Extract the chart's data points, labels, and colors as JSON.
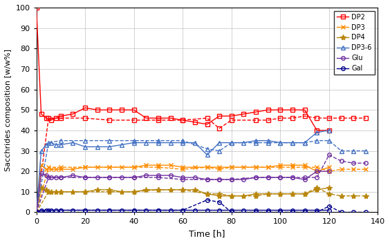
{
  "title": "",
  "xlabel": "Time [h]",
  "ylabel": "Sacchrides composition [w/w%]",
  "xlim": [
    0,
    140
  ],
  "ylim": [
    0,
    100
  ],
  "xticks": [
    0,
    20,
    40,
    60,
    80,
    100,
    120,
    140
  ],
  "yticks": [
    0,
    10,
    20,
    30,
    40,
    50,
    60,
    70,
    80,
    90,
    100
  ],
  "L1": {
    "DP2": {
      "x": [
        0,
        2,
        4,
        6,
        8,
        10,
        15,
        20,
        25,
        30,
        35,
        40,
        45,
        50,
        55,
        60,
        65,
        70,
        75,
        80,
        85,
        90,
        95,
        100,
        105,
        110,
        115,
        120
      ],
      "y": [
        100,
        48,
        46,
        45,
        46,
        47,
        48,
        51,
        50,
        50,
        50,
        50,
        46,
        46,
        46,
        45,
        44,
        43,
        47,
        47,
        48,
        49,
        50,
        50,
        50,
        50,
        40,
        40
      ],
      "color": "#FF0000",
      "marker": "s"
    },
    "DP3": {
      "x": [
        0,
        2,
        4,
        6,
        8,
        10,
        15,
        20,
        25,
        30,
        35,
        40,
        45,
        50,
        55,
        60,
        65,
        70,
        75,
        80,
        85,
        90,
        95,
        100,
        105,
        110,
        115,
        120
      ],
      "y": [
        0,
        23,
        21,
        21,
        21,
        21,
        21,
        22,
        22,
        22,
        22,
        22,
        23,
        23,
        23,
        22,
        22,
        22,
        22,
        22,
        22,
        22,
        22,
        23,
        23,
        23,
        20,
        22
      ],
      "color": "#FF8C00",
      "marker": "x"
    },
    "DP4": {
      "x": [
        0,
        2,
        4,
        6,
        8,
        10,
        15,
        20,
        25,
        30,
        35,
        40,
        45,
        50,
        55,
        60,
        65,
        70,
        75,
        80,
        85,
        90,
        95,
        100,
        105,
        110,
        115,
        120
      ],
      "y": [
        0,
        12,
        11,
        10,
        10,
        10,
        10,
        10,
        11,
        11,
        10,
        10,
        11,
        11,
        11,
        11,
        11,
        9,
        8,
        8,
        8,
        9,
        9,
        9,
        9,
        9,
        11,
        12
      ],
      "color": "#B8860B",
      "marker": "*"
    },
    "DP3-6": {
      "x": [
        0,
        2,
        4,
        6,
        8,
        10,
        15,
        20,
        25,
        30,
        35,
        40,
        45,
        50,
        55,
        60,
        65,
        70,
        75,
        80,
        85,
        90,
        95,
        100,
        105,
        110,
        115,
        120
      ],
      "y": [
        0,
        30,
        33,
        34,
        33,
        33,
        34,
        32,
        32,
        32,
        33,
        34,
        34,
        34,
        34,
        34,
        34,
        28,
        34,
        34,
        34,
        35,
        35,
        34,
        34,
        34,
        39,
        40
      ],
      "color": "#4472C4",
      "marker": "^"
    },
    "Glu": {
      "x": [
        0,
        2,
        4,
        6,
        8,
        10,
        15,
        20,
        25,
        30,
        35,
        40,
        45,
        50,
        55,
        60,
        65,
        70,
        75,
        80,
        85,
        90,
        95,
        100,
        105,
        110,
        115,
        120
      ],
      "y": [
        0,
        19,
        18,
        17,
        17,
        17,
        18,
        17,
        17,
        17,
        17,
        17,
        18,
        18,
        18,
        17,
        17,
        16,
        16,
        16,
        16,
        17,
        17,
        17,
        17,
        16,
        20,
        20
      ],
      "color": "#7030A0",
      "marker": "o"
    },
    "Gal": {
      "x": [
        0,
        2,
        4,
        6,
        8,
        10,
        15,
        20,
        25,
        30,
        35,
        40,
        45,
        50,
        55,
        60,
        65,
        70,
        75,
        80,
        85,
        90,
        95,
        100,
        105,
        110,
        115,
        120
      ],
      "y": [
        0,
        1,
        1,
        1,
        1,
        1,
        1,
        1,
        1,
        1,
        1,
        1,
        1,
        1,
        1,
        1,
        1,
        1,
        1,
        1,
        1,
        1,
        1,
        1,
        1,
        1,
        1,
        1
      ],
      "color": "#00008B",
      "marker": "o"
    }
  },
  "L2": {
    "DP2": {
      "x": [
        0,
        5,
        10,
        20,
        30,
        40,
        50,
        60,
        70,
        75,
        80,
        90,
        95,
        100,
        105,
        110,
        115,
        120,
        125,
        130,
        135
      ],
      "y": [
        0,
        46,
        46,
        46,
        45,
        45,
        45,
        45,
        46,
        41,
        45,
        45,
        45,
        46,
        46,
        47,
        46,
        46,
        46,
        46,
        46
      ],
      "color": "#FF0000",
      "marker": "s"
    },
    "DP3": {
      "x": [
        0,
        5,
        10,
        20,
        30,
        40,
        50,
        60,
        70,
        75,
        80,
        90,
        95,
        100,
        105,
        110,
        115,
        120,
        125,
        130,
        135
      ],
      "y": [
        0,
        22,
        22,
        22,
        22,
        22,
        22,
        21,
        22,
        21,
        22,
        22,
        22,
        22,
        22,
        22,
        22,
        20,
        21,
        21,
        21
      ],
      "color": "#FF8C00",
      "marker": "x"
    },
    "DP4": {
      "x": [
        0,
        5,
        10,
        20,
        30,
        40,
        50,
        60,
        70,
        75,
        80,
        90,
        95,
        100,
        105,
        110,
        115,
        120,
        125,
        130,
        135
      ],
      "y": [
        0,
        10,
        10,
        10,
        10,
        10,
        11,
        11,
        9,
        9,
        8,
        8,
        9,
        9,
        9,
        9,
        12,
        9,
        8,
        8,
        8
      ],
      "color": "#B8860B",
      "marker": "*"
    },
    "DP3-6": {
      "x": [
        0,
        5,
        10,
        20,
        30,
        40,
        50,
        60,
        70,
        75,
        80,
        90,
        95,
        100,
        105,
        110,
        115,
        120,
        125,
        130,
        135
      ],
      "y": [
        0,
        34,
        35,
        35,
        35,
        35,
        35,
        35,
        31,
        30,
        34,
        34,
        34,
        34,
        34,
        34,
        35,
        35,
        30,
        30,
        30
      ],
      "color": "#4472C4",
      "marker": "^"
    },
    "Glu": {
      "x": [
        0,
        5,
        10,
        20,
        30,
        40,
        50,
        60,
        70,
        75,
        80,
        90,
        95,
        100,
        105,
        110,
        115,
        120,
        125,
        130,
        135
      ],
      "y": [
        0,
        17,
        17,
        17,
        17,
        17,
        17,
        16,
        16,
        16,
        16,
        17,
        17,
        17,
        17,
        17,
        17,
        28,
        25,
        24,
        24
      ],
      "color": "#7030A0",
      "marker": "o"
    },
    "Gal": {
      "x": [
        0,
        5,
        10,
        20,
        30,
        40,
        50,
        60,
        70,
        75,
        80,
        90,
        95,
        100,
        105,
        110,
        115,
        120,
        125,
        130,
        135
      ],
      "y": [
        0,
        1,
        1,
        1,
        1,
        1,
        1,
        1,
        6,
        5,
        0,
        0,
        0,
        0,
        0,
        0,
        0,
        3,
        0,
        0,
        0
      ],
      "color": "#00008B",
      "marker": "o"
    }
  },
  "series_order": [
    "DP2",
    "DP3",
    "DP4",
    "DP3-6",
    "Glu",
    "Gal"
  ],
  "open_markers": [
    "s",
    "o",
    "^"
  ],
  "figsize": [
    5.64,
    3.52
  ],
  "dpi": 100
}
